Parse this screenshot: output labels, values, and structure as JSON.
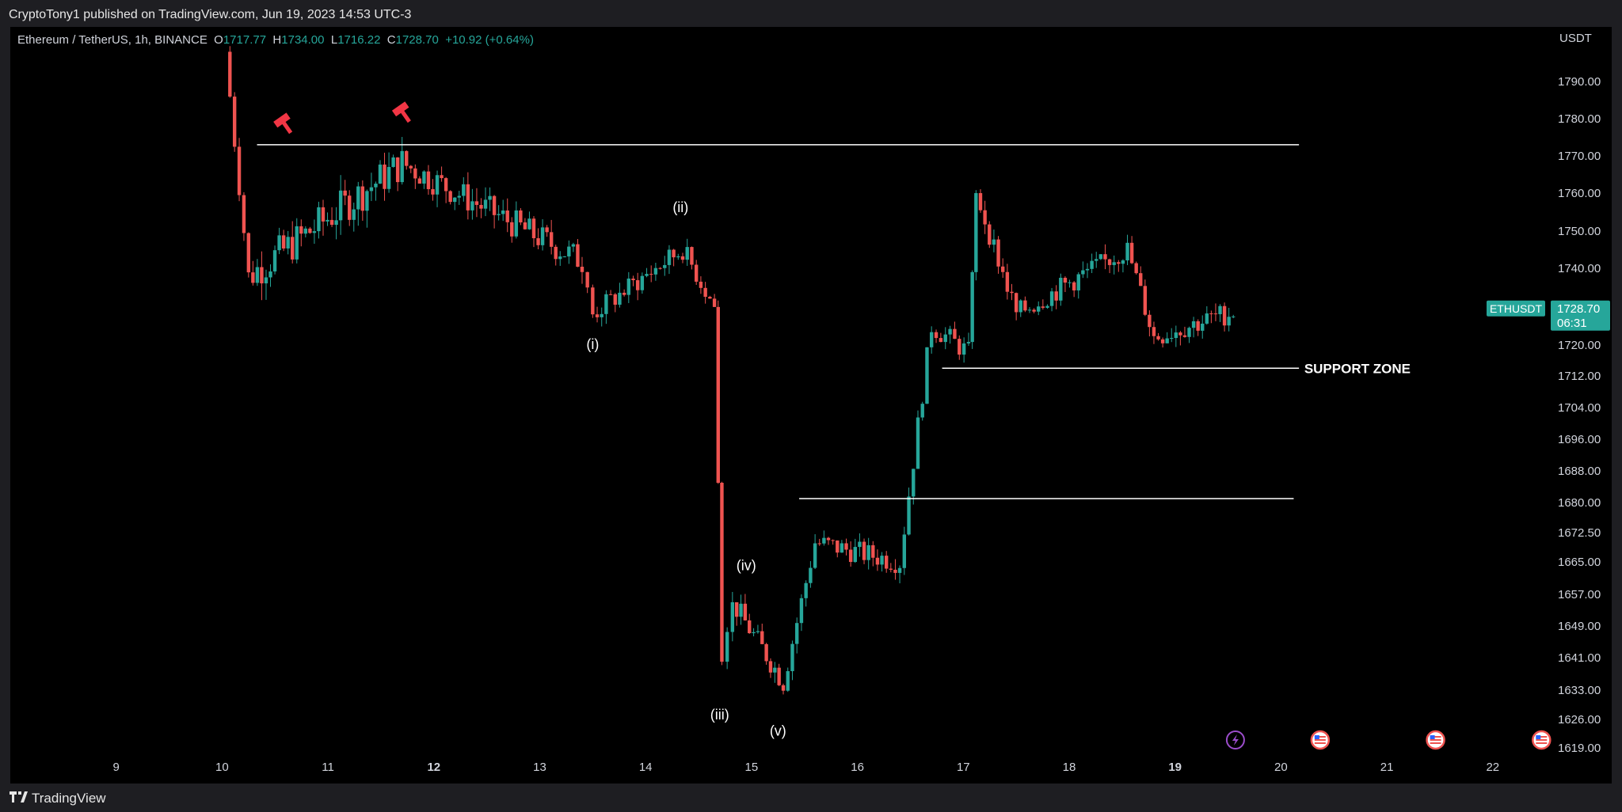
{
  "header": {
    "published": "CryptoTony1 published on TradingView.com, Jun 19, 2023 14:53 UTC-3"
  },
  "legend": {
    "symbol": "Ethereum / TetherUS, 1h, BINANCE",
    "o_label": "O",
    "o": "1717.77",
    "h_label": "H",
    "h": "1734.00",
    "l_label": "L",
    "l": "1716.22",
    "c_label": "C",
    "c": "1728.70",
    "change": "+10.92 (+0.64%)"
  },
  "price_axis": {
    "unit": "USDT",
    "ticks": [
      "1790.00",
      "1780.00",
      "1770.00",
      "1760.00",
      "1750.00",
      "1740.00",
      "1720.00",
      "1712.00",
      "1704.00",
      "1696.00",
      "1688.00",
      "1680.00",
      "1672.50",
      "1665.00",
      "1657.00",
      "1649.00",
      "1641.00",
      "1633.00",
      "1626.00",
      "1619.00"
    ]
  },
  "badge": {
    "symbol": "ETHUSDT",
    "price": "1728.70",
    "countdown": "06:31"
  },
  "footer": {
    "brand": "TradingView"
  },
  "colors": {
    "up": "#26a69a",
    "down": "#ef5350",
    "background": "#000000",
    "line": "#ffffff",
    "hammer": "#f23645"
  },
  "chart_data": {
    "type": "candlestick",
    "x_ticks": [
      {
        "label": "9",
        "day": 9
      },
      {
        "label": "10",
        "day": 10
      },
      {
        "label": "11",
        "day": 11
      },
      {
        "label": "12",
        "day": 12,
        "bold": true
      },
      {
        "label": "13",
        "day": 13
      },
      {
        "label": "14",
        "day": 14
      },
      {
        "label": "15",
        "day": 15
      },
      {
        "label": "16",
        "day": 16
      },
      {
        "label": "17",
        "day": 17
      },
      {
        "label": "18",
        "day": 18
      },
      {
        "label": "19",
        "day": 19,
        "bold": true
      },
      {
        "label": "20",
        "day": 20
      },
      {
        "label": "21",
        "day": 21
      },
      {
        "label": "22",
        "day": 22
      }
    ],
    "candles_segments": [
      {
        "start": 10.03,
        "end": 10.25,
        "from": 1798,
        "to": 1738,
        "vol": 3
      },
      {
        "start": 10.25,
        "end": 11.7,
        "from": 1738,
        "to": 1768,
        "vol": 5
      },
      {
        "start": 11.7,
        "end": 13.4,
        "from": 1768,
        "to": 1742,
        "vol": 4
      },
      {
        "start": 13.4,
        "end": 13.5,
        "from": 1742,
        "to": 1728,
        "vol": 3
      },
      {
        "start": 13.5,
        "end": 14.35,
        "from": 1728,
        "to": 1745,
        "vol": 3
      },
      {
        "start": 14.35,
        "end": 14.65,
        "from": 1745,
        "to": 1730,
        "vol": 3
      },
      {
        "start": 14.65,
        "end": 14.72,
        "from": 1730,
        "to": 1640,
        "vol": 3
      },
      {
        "start": 14.72,
        "end": 14.82,
        "from": 1640,
        "to": 1655,
        "vol": 3
      },
      {
        "start": 14.82,
        "end": 15.3,
        "from": 1655,
        "to": 1635,
        "vol": 3
      },
      {
        "start": 15.3,
        "end": 15.6,
        "from": 1635,
        "to": 1670,
        "vol": 3
      },
      {
        "start": 15.6,
        "end": 16.4,
        "from": 1670,
        "to": 1665,
        "vol": 3
      },
      {
        "start": 16.4,
        "end": 16.7,
        "from": 1665,
        "to": 1725,
        "vol": 3
      },
      {
        "start": 16.7,
        "end": 17.05,
        "from": 1725,
        "to": 1718,
        "vol": 3
      },
      {
        "start": 17.05,
        "end": 17.12,
        "from": 1718,
        "to": 1760,
        "vol": 3
      },
      {
        "start": 17.12,
        "end": 17.5,
        "from": 1760,
        "to": 1728,
        "vol": 3
      },
      {
        "start": 17.5,
        "end": 18.55,
        "from": 1728,
        "to": 1745,
        "vol": 3
      },
      {
        "start": 18.55,
        "end": 18.8,
        "from": 1745,
        "to": 1722,
        "vol": 3
      },
      {
        "start": 18.8,
        "end": 19.55,
        "from": 1722,
        "to": 1728.7,
        "vol": 3
      }
    ],
    "lines": [
      {
        "name": "resistance",
        "price": 1773,
        "x1": 10.33,
        "x2": 20.17
      },
      {
        "name": "support",
        "price": 1714,
        "x1": 16.8,
        "x2": 20.17
      },
      {
        "name": "breakout",
        "price": 1681,
        "x1": 15.45,
        "x2": 20.12
      }
    ],
    "wave_labels": [
      {
        "text": "(i)",
        "day": 13.5,
        "price": 1719
      },
      {
        "text": "(ii)",
        "day": 14.33,
        "price": 1755
      },
      {
        "text": "(iii)",
        "day": 14.7,
        "price": 1626
      },
      {
        "text": "(iv)",
        "day": 14.95,
        "price": 1663
      },
      {
        "text": "(v)",
        "day": 15.25,
        "price": 1622
      }
    ],
    "annotation": {
      "text": "SUPPORT ZONE",
      "day": 20.22,
      "price": 1714
    },
    "hammers": [
      {
        "day": 10.58,
        "price": 1779
      },
      {
        "day": 11.7,
        "price": 1782
      }
    ],
    "events": [
      {
        "day": 19.57,
        "kind": "bolt"
      },
      {
        "day": 20.37,
        "kind": "flag"
      },
      {
        "day": 21.46,
        "kind": "flag"
      },
      {
        "day": 22.46,
        "kind": "flag"
      }
    ]
  }
}
